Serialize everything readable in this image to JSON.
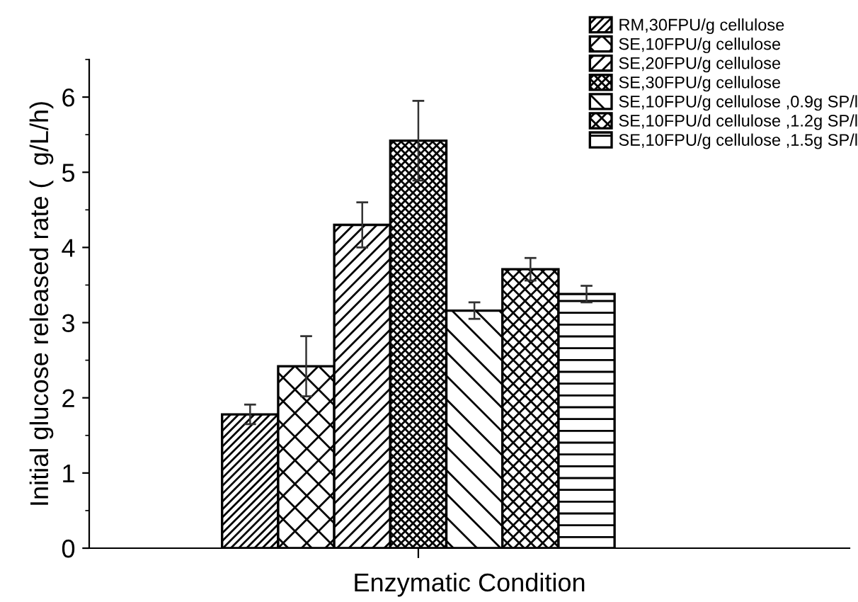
{
  "chart_data": {
    "type": "bar",
    "xlabel": "Enzymatic Condition",
    "ylabel": "Initial glucose released rate (  g/L/h)",
    "categories": [
      null
    ],
    "series": [
      {
        "name": "RM,30FPU/g cellulose",
        "color": "#000000",
        "values": [
          1.78
        ],
        "errors": [
          0.13
        ]
      },
      {
        "name": "SE,10FPU/g cellulose",
        "color": "#000000",
        "values": [
          2.42
        ],
        "errors": [
          0.4
        ]
      },
      {
        "name": "SE,20FPU/g cellulose",
        "color": "#000000",
        "values": [
          4.3
        ],
        "errors": [
          0.3
        ]
      },
      {
        "name": "SE,30FPU/g cellulose",
        "color": "#000000",
        "values": [
          5.42
        ],
        "errors": [
          0.53
        ]
      },
      {
        "name": "SE,10FPU/g cellulose ,0.9g SP/l",
        "color": "#000000",
        "values": [
          3.16
        ],
        "errors": [
          0.11
        ]
      },
      {
        "name": "SE,10FPU/d cellulose ,1.2g SP/l",
        "color": "#000000",
        "values": [
          3.71
        ],
        "errors": [
          0.15
        ]
      },
      {
        "name": "SE,10FPU/g cellulose ,1.5g SP/l",
        "color": "#000000",
        "values": [
          3.38
        ],
        "errors": [
          0.11
        ]
      }
    ],
    "ylim": [
      0,
      6.5
    ],
    "yticks": [
      0,
      1,
      2,
      3,
      4,
      5,
      6
    ],
    "grid": false,
    "legend": "top right"
  }
}
